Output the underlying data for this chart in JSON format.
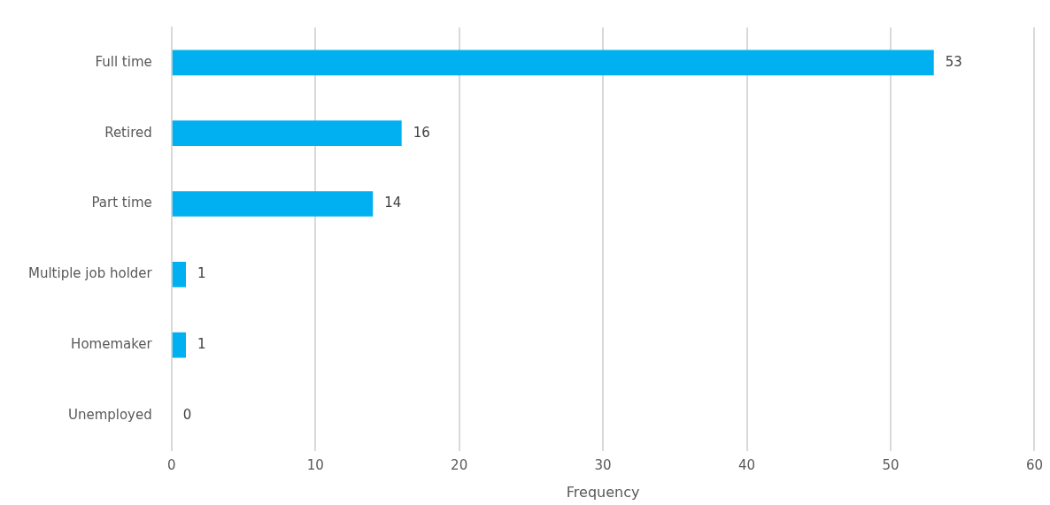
{
  "chart_data": {
    "type": "bar",
    "orientation": "horizontal",
    "xlabel": "Frequency",
    "categories": [
      "Full time",
      "Retired",
      "Part time",
      "Multiple job holder",
      "Homemaker",
      "Unemployed"
    ],
    "values": [
      53,
      16,
      14,
      1,
      1,
      0
    ],
    "color": "#00b0f0",
    "xlim": [
      0,
      60
    ],
    "xticks": [
      0,
      10,
      20,
      30,
      40,
      50,
      60
    ],
    "grid": "x",
    "data_labels": true,
    "legend": false
  }
}
